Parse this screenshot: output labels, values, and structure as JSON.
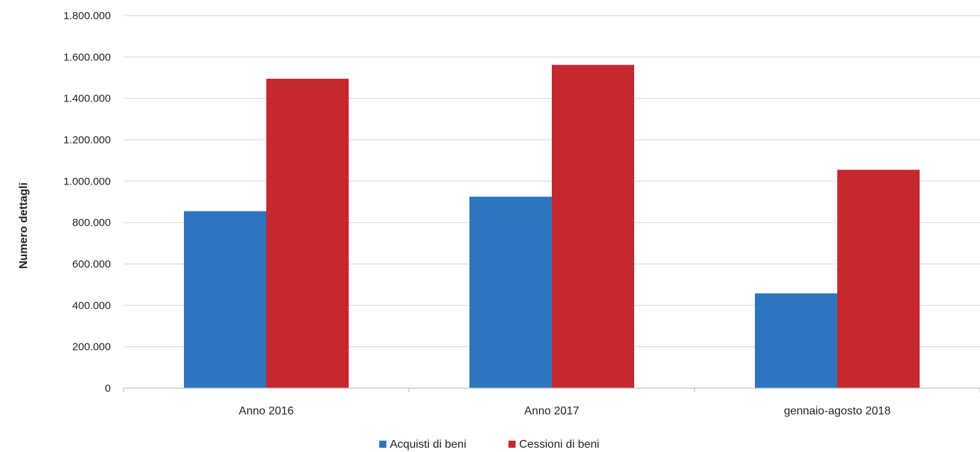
{
  "chart_data": {
    "type": "bar",
    "title": "",
    "xlabel": "",
    "ylabel": "Numero dettagli",
    "ylim": [
      0,
      1800000
    ],
    "ytick_values": [
      0,
      200000,
      400000,
      600000,
      800000,
      1000000,
      1200000,
      1400000,
      1600000,
      1800000
    ],
    "ytick_labels": [
      "0",
      "200.000",
      "400.000",
      "600.000",
      "800.000",
      "1.000.000",
      "1.200.000",
      "1.400.000",
      "1.600.000",
      "1.800.000"
    ],
    "categories": [
      "Anno 2016",
      "Anno 2017",
      "gennaio-agosto 2018"
    ],
    "series": [
      {
        "name": "Acquisti di beni",
        "color": "#2e75c0",
        "values": [
          855000,
          925000,
          458000
        ]
      },
      {
        "name": "Cessioni di beni",
        "color": "#c6282f",
        "values": [
          1495000,
          1562000,
          1055000
        ]
      }
    ],
    "grid": true,
    "legend": "bottom-center"
  }
}
